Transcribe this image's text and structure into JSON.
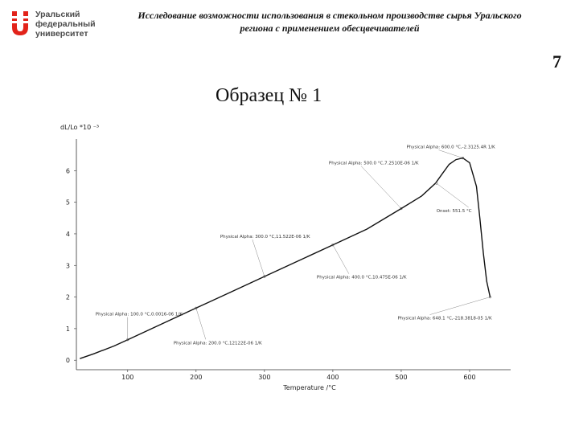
{
  "logo": {
    "line1": "Уральский",
    "line2": "федеральный",
    "line3": "университет",
    "colors": {
      "red": "#e2231a",
      "gray": "#6d6e70"
    }
  },
  "header": {
    "title_line1": "Исследование возможности использования в стекольном производстве сырья Уральского",
    "title_line2": "региона с применением обесцвечивателей"
  },
  "page_number": "7",
  "sample_title": "Образец № 1",
  "chart_data": {
    "type": "line",
    "xlabel": "Temperature /°C",
    "ylabel": "dL/Lo *10 ⁻³",
    "xlim": [
      25,
      660
    ],
    "ylim": [
      -0.3,
      7.0
    ],
    "x_ticks": [
      100,
      200,
      300,
      400,
      500,
      600
    ],
    "y_ticks": [
      0,
      1,
      2,
      3,
      4,
      5,
      6
    ],
    "grid": false,
    "series": [
      {
        "x": [
          30,
          50,
          80,
          100,
          150,
          200,
          250,
          300,
          350,
          400,
          450,
          500,
          530,
          550,
          560,
          570,
          580,
          590,
          600,
          610,
          615,
          620,
          625,
          630
        ],
        "y": [
          0.05,
          0.2,
          0.45,
          0.65,
          1.15,
          1.65,
          2.15,
          2.65,
          3.15,
          3.65,
          4.15,
          4.8,
          5.2,
          5.6,
          5.9,
          6.2,
          6.35,
          6.4,
          6.25,
          5.5,
          4.5,
          3.4,
          2.5,
          2.0
        ]
      }
    ],
    "annotations": [
      {
        "text": "Physical Alpha: 100.0 °C,0.0016-06 1/K",
        "x": 100,
        "y": 0.65
      },
      {
        "text": "Physical Alpha: 200.0 °C,12122E-06 1/K",
        "x": 200,
        "y": 1.65
      },
      {
        "text": "Physical Alpha: 300.0 °C,11.522E-06 1/K",
        "x": 300,
        "y": 2.65
      },
      {
        "text": "Physical Alpha: 400.0 °C,10.475E-06 1/K",
        "x": 400,
        "y": 3.65
      },
      {
        "text": "Physical Alpha: 500.0 °C,7.2510E-06 1/K",
        "x": 500,
        "y": 4.8
      },
      {
        "text": "Physical Alpha: 600.0 °C,-2.3125.4R 1/K",
        "x": 590,
        "y": 6.4
      },
      {
        "text": "Onset: 551.5 °C",
        "x": 551.5,
        "y": 5.6
      },
      {
        "text": "Physical Alpha: 648.1 °C,-218.3818-05 1/K",
        "x": 630,
        "y": 2.0
      }
    ]
  }
}
